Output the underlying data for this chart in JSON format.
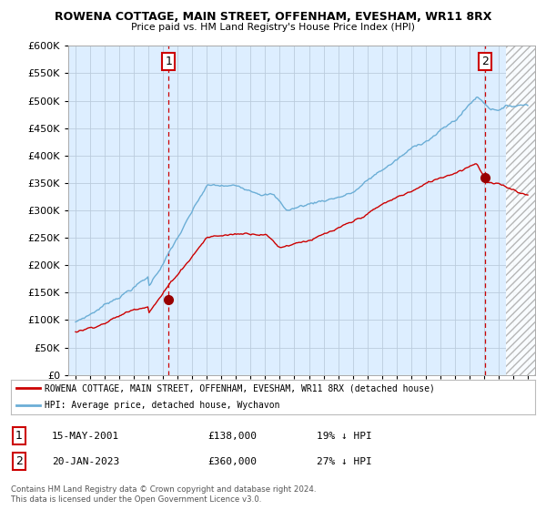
{
  "title1": "ROWENA COTTAGE, MAIN STREET, OFFENHAM, EVESHAM, WR11 8RX",
  "title2": "Price paid vs. HM Land Registry's House Price Index (HPI)",
  "ylim": [
    0,
    600000
  ],
  "yticks": [
    0,
    50000,
    100000,
    150000,
    200000,
    250000,
    300000,
    350000,
    400000,
    450000,
    500000,
    550000,
    600000
  ],
  "xlim_start": 1994.5,
  "xlim_end": 2026.5,
  "hpi_color": "#6baed6",
  "price_color": "#cc0000",
  "dot_color": "#990000",
  "marker1_date": 2001.37,
  "marker1_value": 138000,
  "marker2_date": 2023.05,
  "marker2_value": 360000,
  "legend_line1": "ROWENA COTTAGE, MAIN STREET, OFFENHAM, EVESHAM, WR11 8RX (detached house)",
  "legend_line2": "HPI: Average price, detached house, Wychavon",
  "annotation1_label": "1",
  "annotation1_text": "15-MAY-2001",
  "annotation1_price": "£138,000",
  "annotation1_hpi": "19% ↓ HPI",
  "annotation2_label": "2",
  "annotation2_text": "20-JAN-2023",
  "annotation2_price": "£360,000",
  "annotation2_hpi": "27% ↓ HPI",
  "footer": "Contains HM Land Registry data © Crown copyright and database right 2024.\nThis data is licensed under the Open Government Licence v3.0.",
  "chart_bg": "#ddeeff",
  "hatch_start": 2024.5,
  "grid_color": "#bbccdd"
}
